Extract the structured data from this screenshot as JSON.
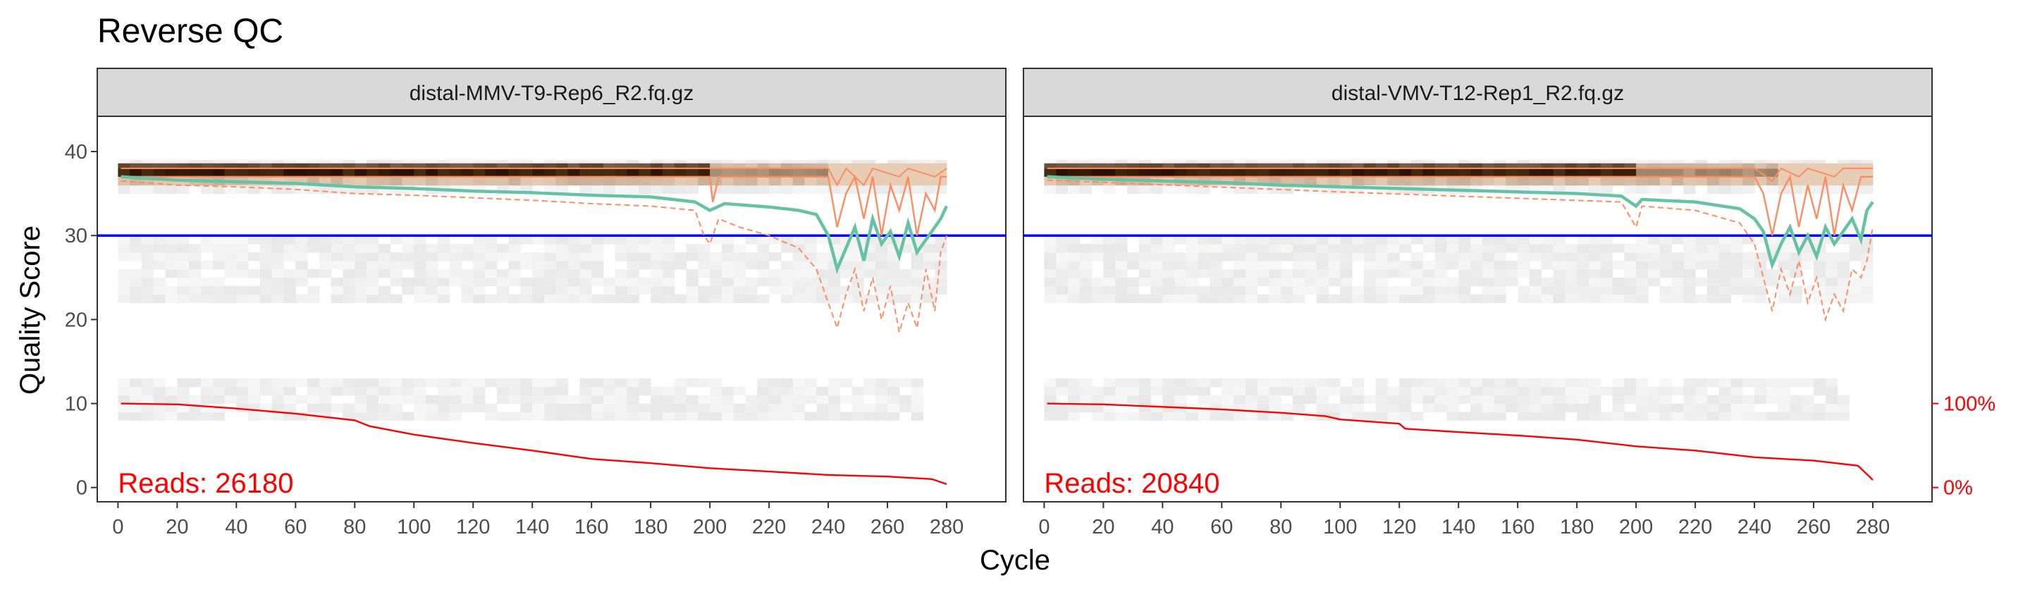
{
  "title": "Reverse QC",
  "chart_data": {
    "type": "line",
    "title": "Reverse QC",
    "xlabel": "Cycle",
    "ylabel": "Quality Score",
    "xlim": [
      -7,
      300
    ],
    "ylim": [
      -1.7,
      44.2
    ],
    "xticks": [
      0,
      20,
      40,
      60,
      80,
      100,
      120,
      140,
      160,
      180,
      200,
      220,
      240,
      260,
      280
    ],
    "yticks": [
      0,
      10,
      20,
      30,
      40
    ],
    "reference_line": {
      "y": 30,
      "color": "#0000ff"
    },
    "secondary_axis": {
      "ticks": [
        "100%",
        "0%"
      ],
      "values": [
        10,
        0
      ],
      "color": "#ff0000"
    },
    "colors": {
      "mean": "#66c2a5",
      "quantiles": "#fc8d62",
      "reads_fraction": "#ff0000",
      "strip_fill": "#d9d9d9",
      "heat_high": "#000000",
      "heat_low": "#f2f2f2"
    },
    "panels": [
      {
        "name": "distal-MMV-T9-Rep6_R2.fq.gz",
        "reads_label": "Reads:  26180",
        "mean": [
          [
            1,
            37.0
          ],
          [
            20,
            36.6
          ],
          [
            40,
            36.4
          ],
          [
            60,
            36.2
          ],
          [
            80,
            35.8
          ],
          [
            100,
            35.6
          ],
          [
            120,
            35.3
          ],
          [
            140,
            35.1
          ],
          [
            160,
            34.8
          ],
          [
            180,
            34.6
          ],
          [
            195,
            34.0
          ],
          [
            200,
            33.0
          ],
          [
            205,
            33.8
          ],
          [
            220,
            33.4
          ],
          [
            230,
            33.0
          ],
          [
            236,
            32.5
          ],
          [
            240,
            30.0
          ],
          [
            243,
            26.0
          ],
          [
            246,
            28.5
          ],
          [
            249,
            31.0
          ],
          [
            252,
            27.0
          ],
          [
            255,
            32.0
          ],
          [
            258,
            29.0
          ],
          [
            261,
            30.5
          ],
          [
            264,
            27.5
          ],
          [
            267,
            31.5
          ],
          [
            270,
            28.0
          ],
          [
            273,
            29.5
          ],
          [
            276,
            31.0
          ],
          [
            278,
            32.0
          ],
          [
            280,
            33.5
          ]
        ],
        "q25": [
          [
            1,
            36.5
          ],
          [
            20,
            36.0
          ],
          [
            40,
            35.8
          ],
          [
            60,
            35.5
          ],
          [
            80,
            35.0
          ],
          [
            100,
            34.8
          ],
          [
            120,
            34.5
          ],
          [
            140,
            34.2
          ],
          [
            160,
            33.8
          ],
          [
            180,
            33.5
          ],
          [
            195,
            33.0
          ],
          [
            198,
            30.0
          ],
          [
            200,
            29.0
          ],
          [
            203,
            32.0
          ],
          [
            210,
            31.0
          ],
          [
            220,
            30.0
          ],
          [
            230,
            28.5
          ],
          [
            236,
            26.0
          ],
          [
            240,
            22.0
          ],
          [
            243,
            19.0
          ],
          [
            246,
            23.0
          ],
          [
            249,
            26.0
          ],
          [
            252,
            21.0
          ],
          [
            255,
            25.0
          ],
          [
            258,
            20.0
          ],
          [
            261,
            24.0
          ],
          [
            264,
            18.5
          ],
          [
            267,
            22.0
          ],
          [
            270,
            19.0
          ],
          [
            273,
            26.0
          ],
          [
            276,
            21.0
          ],
          [
            278,
            28.0
          ],
          [
            280,
            30.0
          ]
        ],
        "median": [
          [
            1,
            37.0
          ],
          [
            100,
            37.0
          ],
          [
            160,
            37.0
          ],
          [
            200,
            37.0
          ],
          [
            201,
            34.0
          ],
          [
            203,
            37.0
          ],
          [
            240,
            37.0
          ],
          [
            243,
            31.0
          ],
          [
            246,
            35.0
          ],
          [
            249,
            37.0
          ],
          [
            252,
            32.0
          ],
          [
            255,
            37.0
          ],
          [
            258,
            30.0
          ],
          [
            261,
            36.0
          ],
          [
            264,
            33.0
          ],
          [
            267,
            37.0
          ],
          [
            270,
            30.0
          ],
          [
            273,
            35.0
          ],
          [
            276,
            33.0
          ],
          [
            278,
            37.0
          ],
          [
            280,
            37.0
          ]
        ],
        "q75": [
          [
            1,
            38.0
          ],
          [
            200,
            38.0
          ],
          [
            240,
            38.0
          ],
          [
            243,
            36.0
          ],
          [
            246,
            38.0
          ],
          [
            252,
            36.0
          ],
          [
            255,
            38.0
          ],
          [
            264,
            37.0
          ],
          [
            267,
            38.0
          ],
          [
            276,
            37.0
          ],
          [
            280,
            38.0
          ]
        ],
        "reads": [
          [
            1,
            10.0
          ],
          [
            20,
            9.9
          ],
          [
            40,
            9.4
          ],
          [
            60,
            8.8
          ],
          [
            80,
            8.0
          ],
          [
            85,
            7.3
          ],
          [
            100,
            6.3
          ],
          [
            120,
            5.3
          ],
          [
            140,
            4.4
          ],
          [
            160,
            3.4
          ],
          [
            180,
            2.9
          ],
          [
            200,
            2.3
          ],
          [
            220,
            1.9
          ],
          [
            240,
            1.5
          ],
          [
            260,
            1.3
          ],
          [
            275,
            1.0
          ],
          [
            280,
            0.4
          ]
        ],
        "heatmap_bands": [
          [
            35,
            38.5
          ],
          [
            22,
            30
          ],
          [
            8,
            13
          ]
        ]
      },
      {
        "name": "distal-VMV-T12-Rep1_R2.fq.gz",
        "reads_label": "Reads:  20840",
        "mean": [
          [
            1,
            37.0
          ],
          [
            20,
            36.7
          ],
          [
            40,
            36.5
          ],
          [
            60,
            36.3
          ],
          [
            80,
            36.0
          ],
          [
            100,
            35.8
          ],
          [
            120,
            35.6
          ],
          [
            140,
            35.4
          ],
          [
            160,
            35.2
          ],
          [
            180,
            35.0
          ],
          [
            195,
            34.7
          ],
          [
            200,
            33.5
          ],
          [
            202,
            34.3
          ],
          [
            220,
            34.0
          ],
          [
            235,
            33.2
          ],
          [
            240,
            32.0
          ],
          [
            243,
            30.5
          ],
          [
            246,
            26.5
          ],
          [
            249,
            29.0
          ],
          [
            252,
            31.0
          ],
          [
            255,
            28.0
          ],
          [
            258,
            30.0
          ],
          [
            261,
            27.5
          ],
          [
            264,
            31.0
          ],
          [
            267,
            29.0
          ],
          [
            270,
            30.5
          ],
          [
            273,
            32.0
          ],
          [
            276,
            29.5
          ],
          [
            278,
            33.0
          ],
          [
            280,
            34.0
          ]
        ],
        "q25": [
          [
            1,
            36.6
          ],
          [
            100,
            35.2
          ],
          [
            195,
            34.0
          ],
          [
            200,
            31.0
          ],
          [
            202,
            33.5
          ],
          [
            220,
            33.0
          ],
          [
            235,
            31.5
          ],
          [
            240,
            29.0
          ],
          [
            243,
            25.0
          ],
          [
            246,
            21.0
          ],
          [
            249,
            26.0
          ],
          [
            252,
            23.0
          ],
          [
            255,
            27.0
          ],
          [
            258,
            22.0
          ],
          [
            261,
            25.0
          ],
          [
            264,
            20.0
          ],
          [
            267,
            23.0
          ],
          [
            270,
            21.0
          ],
          [
            273,
            26.0
          ],
          [
            276,
            25.0
          ],
          [
            278,
            27.0
          ],
          [
            280,
            31.0
          ]
        ],
        "median": [
          [
            1,
            37.0
          ],
          [
            200,
            37.0
          ],
          [
            240,
            37.0
          ],
          [
            243,
            35.0
          ],
          [
            246,
            30.0
          ],
          [
            249,
            35.0
          ],
          [
            252,
            37.0
          ],
          [
            255,
            31.0
          ],
          [
            258,
            36.0
          ],
          [
            261,
            32.0
          ],
          [
            264,
            37.0
          ],
          [
            267,
            30.0
          ],
          [
            270,
            36.0
          ],
          [
            273,
            33.0
          ],
          [
            276,
            37.0
          ],
          [
            280,
            37.0
          ]
        ],
        "q75": [
          [
            1,
            38.0
          ],
          [
            240,
            38.0
          ],
          [
            246,
            36.5
          ],
          [
            249,
            38.0
          ],
          [
            255,
            37.0
          ],
          [
            258,
            38.0
          ],
          [
            267,
            37.0
          ],
          [
            270,
            38.0
          ],
          [
            280,
            38.0
          ]
        ],
        "reads": [
          [
            1,
            10.0
          ],
          [
            20,
            9.9
          ],
          [
            40,
            9.6
          ],
          [
            60,
            9.3
          ],
          [
            80,
            8.9
          ],
          [
            95,
            8.5
          ],
          [
            100,
            8.1
          ],
          [
            120,
            7.6
          ],
          [
            122,
            7.0
          ],
          [
            140,
            6.6
          ],
          [
            160,
            6.2
          ],
          [
            180,
            5.7
          ],
          [
            200,
            4.9
          ],
          [
            220,
            4.4
          ],
          [
            240,
            3.6
          ],
          [
            260,
            3.2
          ],
          [
            275,
            2.6
          ],
          [
            280,
            0.9
          ]
        ],
        "heatmap_bands": [
          [
            35,
            38.5
          ],
          [
            22,
            30
          ],
          [
            8,
            13
          ]
        ]
      }
    ]
  }
}
